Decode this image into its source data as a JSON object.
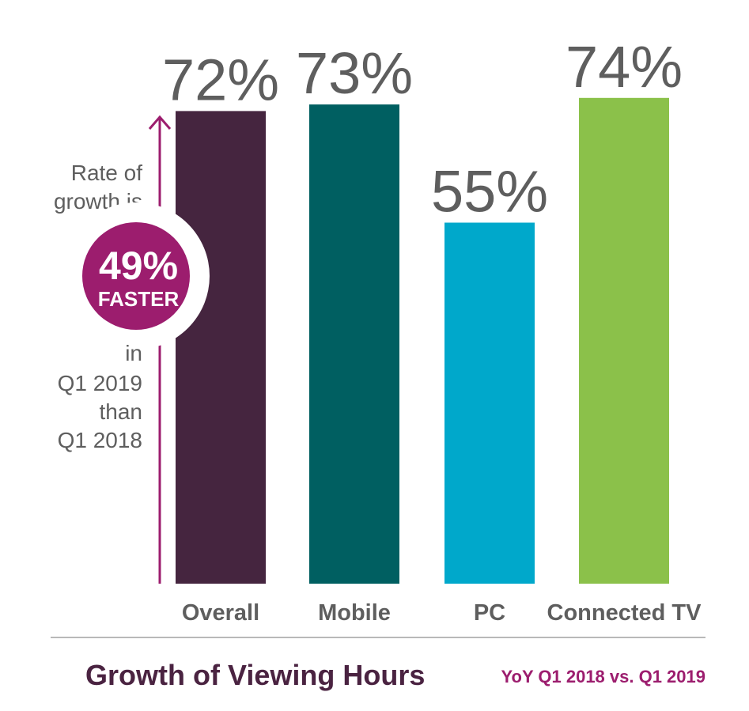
{
  "chart_data": {
    "type": "bar",
    "title": "Growth of Viewing Hours",
    "subtitle": "YoY Q1 2018 vs. Q1 2019",
    "categories": [
      "Overall",
      "Mobile",
      "PC",
      "Connected TV"
    ],
    "values": [
      72,
      73,
      55,
      74
    ],
    "value_labels": [
      "72%",
      "73%",
      "55%",
      "74%"
    ],
    "colors": [
      "#45253f",
      "#005f61",
      "#00a8cb",
      "#8bc14a"
    ],
    "ylim": [
      0,
      100
    ],
    "grid": false,
    "legend": "none"
  },
  "annotation": {
    "line1": "Rate of",
    "line2": "growth is",
    "badge_value": "49%",
    "badge_label": "FASTER",
    "line3": "in",
    "line4": "Q1 2019",
    "line5": "than",
    "line6": "Q1 2018",
    "accent_color": "#9c1d6e"
  }
}
